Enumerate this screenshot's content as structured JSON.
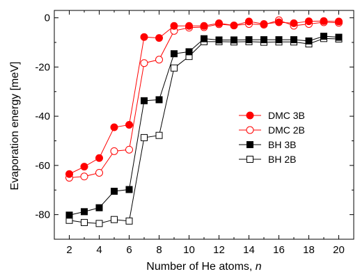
{
  "chart_data": {
    "type": "line",
    "xlabel": "Number of He atoms, ",
    "xlabel_italic": "n",
    "ylabel": "Evaporation energy [meV]",
    "xlim": [
      1,
      21
    ],
    "ylim": [
      -90,
      3
    ],
    "xticks": [
      2,
      4,
      6,
      8,
      10,
      12,
      14,
      16,
      18,
      20
    ],
    "yticks": [
      0,
      -20,
      -40,
      -60,
      -80
    ],
    "legend_position": "center-right",
    "x": [
      2,
      3,
      4,
      5,
      6,
      7,
      8,
      9,
      10,
      11,
      12,
      13,
      14,
      15,
      16,
      17,
      18,
      19,
      20
    ],
    "series": [
      {
        "name": "DMC 3B",
        "color": "#ff0000",
        "marker": "circle",
        "filled": true,
        "values": [
          -63.5,
          -60.5,
          -57,
          -44.5,
          -43.5,
          -7.8,
          -8.2,
          -3.3,
          -3.3,
          -3.3,
          -2.2,
          -3.1,
          -1.5,
          -2.5,
          -1.8,
          -2.2,
          -1.4,
          -1.3,
          -1.5
        ]
      },
      {
        "name": "DMC 2B",
        "color": "#ff0000",
        "marker": "circle",
        "filled": false,
        "values": [
          -65,
          -64.5,
          -63,
          -54.2,
          -53.6,
          -18.4,
          -17,
          -5.3,
          -4,
          -3.8,
          -2.6,
          -3.1,
          -2.5,
          -2.8,
          -1,
          -3.2,
          -2.5,
          -1.8,
          -2
        ]
      },
      {
        "name": "BH 3B",
        "color": "#000000",
        "marker": "square",
        "filled": true,
        "values": [
          -80.2,
          -78.8,
          -77.2,
          -70.5,
          -69.8,
          -33.7,
          -33.3,
          -14.6,
          -13.8,
          -8.5,
          -9,
          -9,
          -8.9,
          -8.9,
          -8.9,
          -8.9,
          -9.4,
          -7.5,
          -7.9
        ]
      },
      {
        "name": "BH 2B",
        "color": "#000000",
        "marker": "square",
        "filled": false,
        "values": [
          -82.3,
          -83.2,
          -83.6,
          -82,
          -82.6,
          -48.7,
          -47.8,
          -20.4,
          -15.7,
          -9.7,
          -9.7,
          -9.8,
          -9.7,
          -9.9,
          -9.8,
          -9.8,
          -10.6,
          -8.4,
          -8.6
        ]
      }
    ]
  }
}
